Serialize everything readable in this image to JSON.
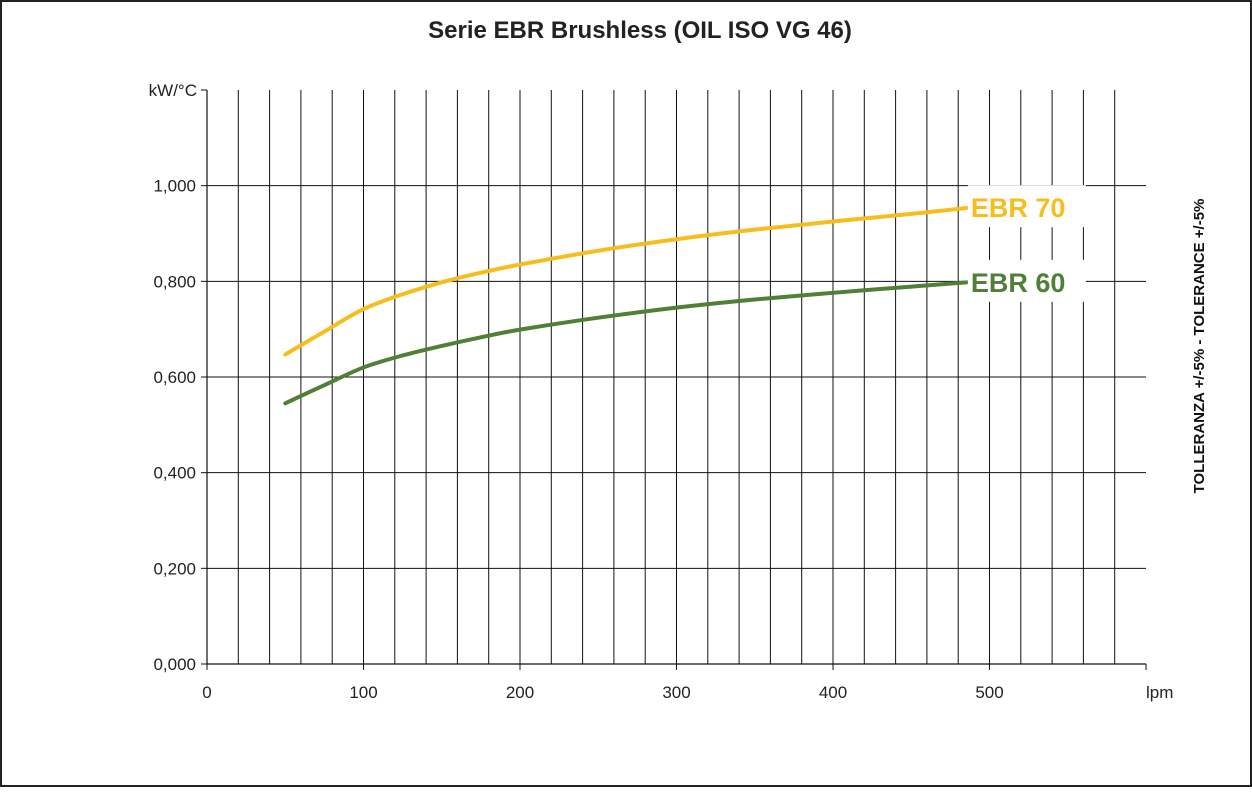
{
  "chart_data": {
    "type": "line",
    "title": "Serie EBR Brushless (OIL ISO VG 46)",
    "ylabel": "kW/°C",
    "xlabel": "lpm",
    "side_note": "TOLLERANZA +/-5% - TOLERANCE +/-5%",
    "xlim": [
      0,
      600
    ],
    "ylim": [
      0,
      1.2
    ],
    "x_ticks": [
      0,
      100,
      200,
      300,
      400,
      500
    ],
    "x_tick_labels": [
      "0",
      "100",
      "200",
      "300",
      "400",
      "500"
    ],
    "y_ticks": [
      0,
      0.2,
      0.4,
      0.6,
      0.8,
      1.0
    ],
    "y_tick_labels": [
      "0,000",
      "0,200",
      "0,400",
      "0,600",
      "0,800",
      "1,000"
    ],
    "grid": true,
    "legend": "inline-right",
    "series": [
      {
        "name": "EBR 70",
        "color": "#F6BE1D",
        "x": [
          50,
          75,
          100,
          125,
          150,
          175,
          200,
          250,
          300,
          350,
          400,
          450,
          490
        ],
        "y": [
          0.647,
          0.695,
          0.742,
          0.773,
          0.798,
          0.818,
          0.835,
          0.864,
          0.888,
          0.908,
          0.925,
          0.941,
          0.955
        ]
      },
      {
        "name": "EBR 60",
        "color": "#507F37",
        "x": [
          50,
          75,
          100,
          125,
          150,
          175,
          200,
          250,
          300,
          350,
          400,
          450,
          490
        ],
        "y": [
          0.545,
          0.583,
          0.62,
          0.645,
          0.665,
          0.683,
          0.699,
          0.724,
          0.745,
          0.762,
          0.776,
          0.789,
          0.799
        ]
      }
    ]
  }
}
